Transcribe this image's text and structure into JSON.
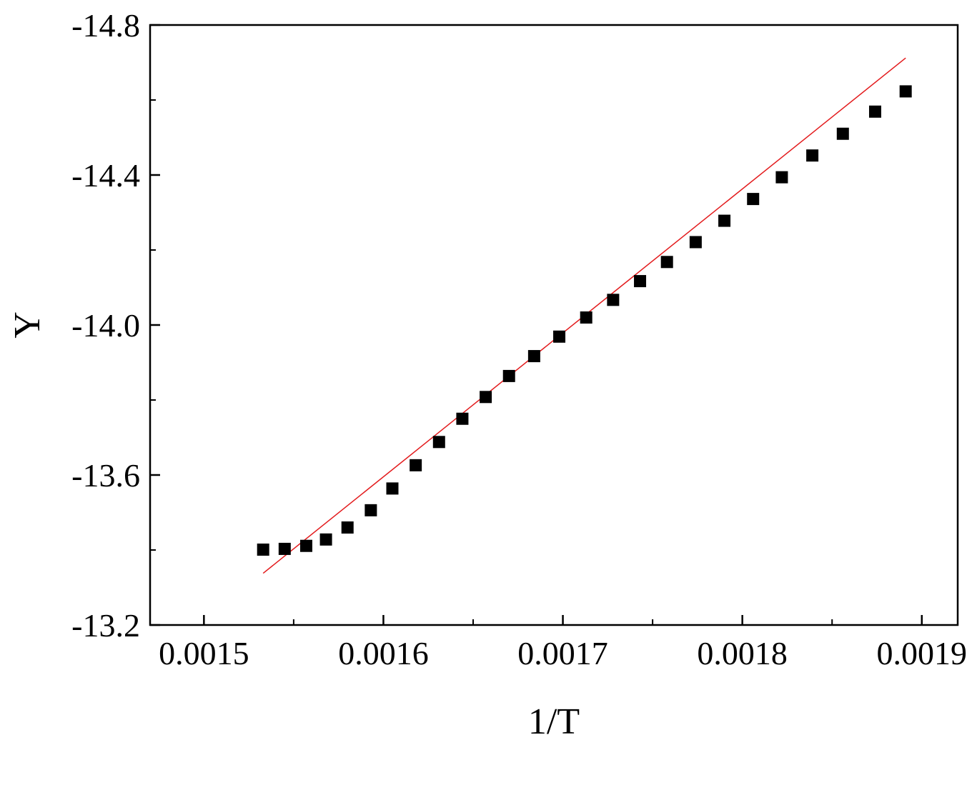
{
  "chart_data": {
    "type": "scatter",
    "title": "",
    "xlabel": "1/T",
    "ylabel": "Y",
    "xlim": [
      0.00147,
      0.00192
    ],
    "ylim": [
      -13.2,
      -14.8
    ],
    "y_inverted": true,
    "x_ticks": [
      0.0015,
      0.0016,
      0.0017,
      0.0018,
      0.0019
    ],
    "x_tick_labels": [
      "0.0015",
      "0.0016",
      "0.0017",
      "0.0018",
      "0.0019"
    ],
    "x_minor_ticks": [
      0.00155,
      0.00165,
      0.00175,
      0.00185
    ],
    "y_ticks": [
      -13.2,
      -13.6,
      -14.0,
      -14.4,
      -14.8
    ],
    "y_tick_labels": [
      "-13.2",
      "-13.6",
      "-14.0",
      "-14.4",
      "-14.8"
    ],
    "y_minor_ticks": [
      -13.4,
      -13.8,
      -14.2,
      -14.6
    ],
    "grid": false,
    "series": [
      {
        "marker": "square",
        "color": "#000000",
        "x": [
          0.001533,
          0.001545,
          0.001557,
          0.001568,
          0.00158,
          0.001593,
          0.001605,
          0.001618,
          0.001631,
          0.001644,
          0.001657,
          0.00167,
          0.001684,
          0.001698,
          0.001713,
          0.001728,
          0.001743,
          0.001758,
          0.001774,
          0.00179,
          0.001806,
          0.001822,
          0.001839,
          0.001856,
          0.001874,
          0.001891
        ],
        "y": [
          -13.401,
          -13.403,
          -13.411,
          -13.428,
          -13.46,
          -13.506,
          -13.564,
          -13.626,
          -13.688,
          -13.75,
          -13.808,
          -13.864,
          -13.917,
          -13.969,
          -14.02,
          -14.067,
          -14.117,
          -14.168,
          -14.221,
          -14.278,
          -14.336,
          -14.394,
          -14.452,
          -14.51,
          -14.569,
          -14.623
        ]
      }
    ],
    "fit_line": {
      "color": "#e31a1c",
      "x": [
        0.001533,
        0.001891
      ],
      "y": [
        -13.338,
        -14.712
      ]
    }
  }
}
